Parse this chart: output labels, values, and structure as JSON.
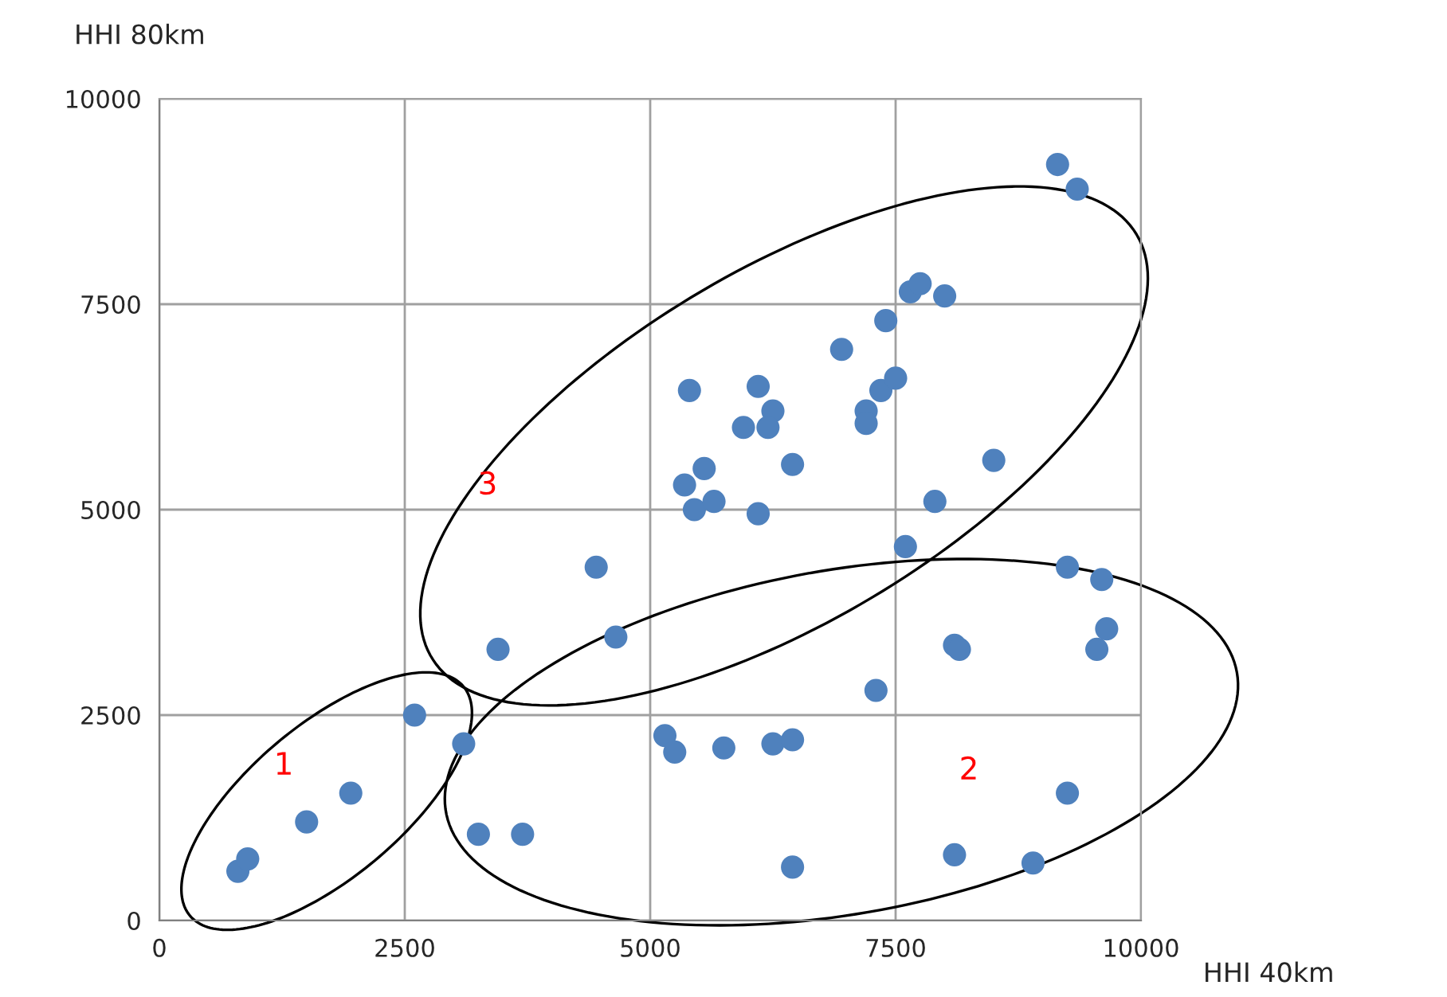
{
  "chart_data": {
    "type": "scatter",
    "xlabel": "HHI 40km",
    "ylabel": "HHI 80km",
    "xlim": [
      0,
      10000
    ],
    "ylim": [
      0,
      10000
    ],
    "xticks": [
      0,
      2500,
      5000,
      7500,
      10000
    ],
    "yticks": [
      0,
      2500,
      5000,
      7500,
      10000
    ],
    "grid": true,
    "marker": "circle",
    "legend": false,
    "series": [
      {
        "color": "#4f81bd",
        "x": [
          800,
          900,
          1500,
          1950,
          2600,
          3100,
          3250,
          3700,
          3450,
          4450,
          4650,
          5150,
          5250,
          5750,
          6250,
          6450,
          6450,
          7300,
          8100,
          8900,
          9250,
          8100,
          8150,
          9250,
          9600,
          9550,
          9650,
          8500,
          7600,
          7900,
          5400,
          6100,
          5950,
          6250,
          6200,
          5350,
          5550,
          5450,
          5650,
          6100,
          6450,
          6950,
          7400,
          7350,
          7500,
          7200,
          7200,
          7650,
          7750,
          8000,
          9150,
          9350
        ],
        "values": [
          600,
          750,
          1200,
          1550,
          2500,
          2150,
          1050,
          1050,
          3300,
          4300,
          3450,
          2250,
          2050,
          2100,
          2150,
          2200,
          650,
          2800,
          800,
          700,
          1550,
          3350,
          3300,
          4300,
          4150,
          3300,
          3550,
          5600,
          4550,
          5100,
          6450,
          6500,
          6000,
          6200,
          6000,
          5300,
          5500,
          5000,
          5100,
          4950,
          5550,
          6950,
          7300,
          6450,
          6600,
          6200,
          6050,
          7650,
          7750,
          7600,
          9200,
          8900
        ]
      }
    ],
    "annotations": [
      "1",
      "2",
      "3"
    ]
  }
}
